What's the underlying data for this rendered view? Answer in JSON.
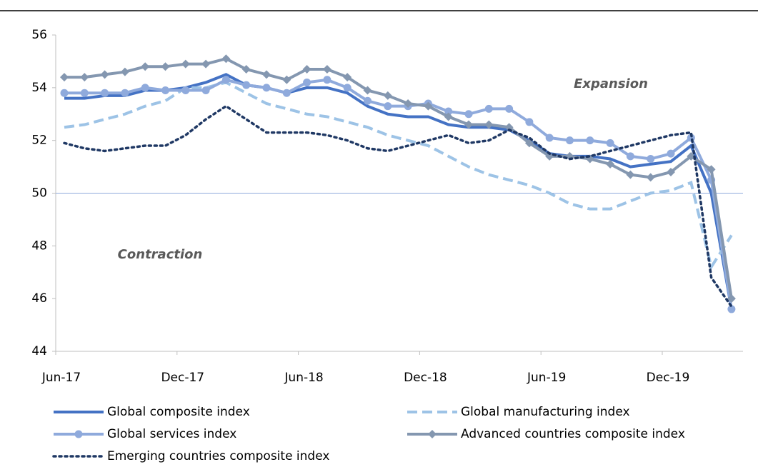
{
  "chart_data": {
    "type": "line",
    "categories": [
      "Jun-17",
      null,
      null,
      null,
      null,
      null,
      "Dec-17",
      null,
      null,
      null,
      null,
      null,
      "Jun-18",
      null,
      null,
      null,
      null,
      null,
      "Dec-18",
      null,
      null,
      null,
      null,
      null,
      "Jun-19",
      null,
      null,
      null,
      null,
      null,
      "Dec-19",
      null,
      null,
      null
    ],
    "series": [
      {
        "name": "Global composite index",
        "color": "#4472c4",
        "dash": "solid",
        "marker": "none",
        "values": [
          53.6,
          53.6,
          53.7,
          53.7,
          53.9,
          53.9,
          54.0,
          54.2,
          54.5,
          54.1,
          54.0,
          53.8,
          54.0,
          54.0,
          53.8,
          53.3,
          53.0,
          52.9,
          52.9,
          52.6,
          52.5,
          52.5,
          52.4,
          52.0,
          51.5,
          51.4,
          51.4,
          51.3,
          51.0,
          51.1,
          51.2,
          51.8,
          50.0,
          45.6
        ]
      },
      {
        "name": "Global manufacturing index",
        "color": "#9dc3e6",
        "dash": "dashed",
        "marker": "none",
        "values": [
          52.5,
          52.6,
          52.8,
          53.0,
          53.3,
          53.5,
          54.0,
          54.0,
          54.2,
          53.8,
          53.4,
          53.2,
          53.0,
          52.9,
          52.7,
          52.5,
          52.2,
          52.0,
          51.8,
          51.4,
          51.0,
          50.7,
          50.5,
          50.3,
          50.0,
          49.6,
          49.4,
          49.4,
          49.7,
          50.0,
          50.1,
          50.4,
          47.2,
          48.4
        ]
      },
      {
        "name": "Global services index",
        "color": "#8faadc",
        "dash": "solid",
        "marker": "circle",
        "values": [
          53.8,
          53.8,
          53.8,
          53.8,
          54.0,
          53.9,
          53.9,
          53.9,
          54.3,
          54.1,
          54.0,
          53.8,
          54.2,
          54.3,
          54.0,
          53.5,
          53.3,
          53.3,
          53.4,
          53.1,
          53.0,
          53.2,
          53.2,
          52.7,
          52.1,
          52.0,
          52.0,
          51.9,
          51.4,
          51.3,
          51.5,
          52.1,
          50.5,
          45.6
        ]
      },
      {
        "name": "Advanced countries composite index",
        "color": "#8497b0",
        "dash": "solid",
        "marker": "diamond",
        "values": [
          54.4,
          54.4,
          54.5,
          54.6,
          54.8,
          54.8,
          54.9,
          54.9,
          55.1,
          54.7,
          54.5,
          54.3,
          54.7,
          54.7,
          54.4,
          53.9,
          53.7,
          53.4,
          53.3,
          52.9,
          52.6,
          52.6,
          52.5,
          51.9,
          51.4,
          51.4,
          51.3,
          51.1,
          50.7,
          50.6,
          50.8,
          51.4,
          50.9,
          46.0
        ]
      },
      {
        "name": "Emerging countries composite index",
        "color": "#1f3864",
        "dash": "dotted",
        "marker": "none",
        "values": [
          51.9,
          51.7,
          51.6,
          51.7,
          51.8,
          51.8,
          52.2,
          52.8,
          53.3,
          52.8,
          52.3,
          52.3,
          52.3,
          52.2,
          52.0,
          51.7,
          51.6,
          51.8,
          52.0,
          52.2,
          51.9,
          52.0,
          52.4,
          52.1,
          51.5,
          51.3,
          51.4,
          51.6,
          51.8,
          52.0,
          52.2,
          52.3,
          46.8,
          45.7
        ]
      }
    ],
    "ylim": [
      44,
      56
    ],
    "yticks": [
      44,
      46,
      48,
      50,
      52,
      54,
      56
    ],
    "reference_line": 50,
    "grid": false,
    "legend": "bottom",
    "annotations": [
      "Expansion",
      "Contraction"
    ]
  }
}
